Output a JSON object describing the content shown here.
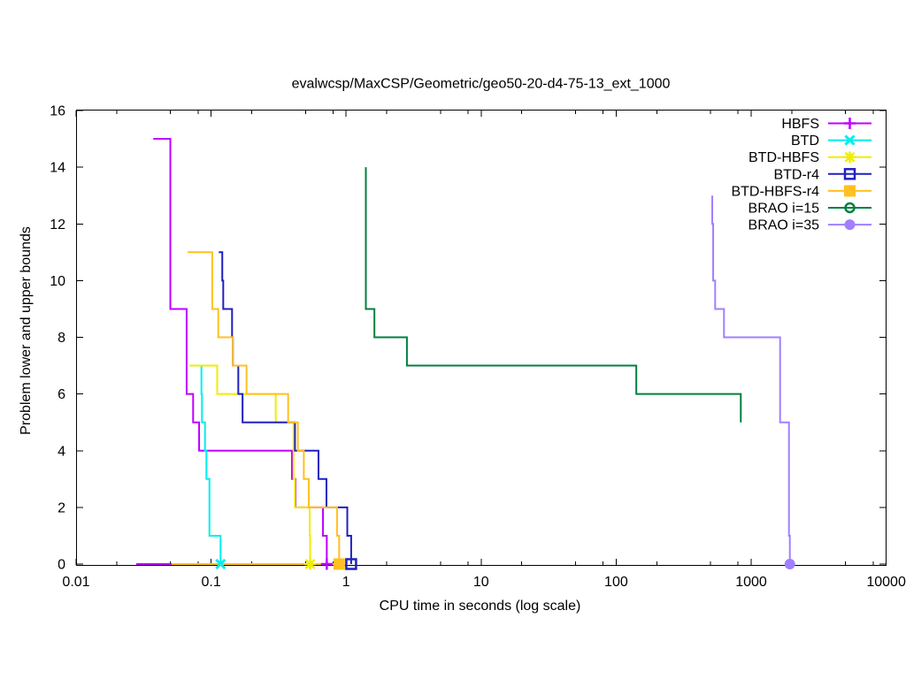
{
  "chart_data": {
    "type": "line",
    "title": "evalwcsp/MaxCSP/Geometric/geo50-20-d4-75-13_ext_1000",
    "xlabel": "CPU time in seconds (log scale)",
    "ylabel": "Problem lower and upper bounds",
    "xscale": "log",
    "xlim": [
      0.01,
      10000
    ],
    "ylim": [
      0,
      16
    ],
    "grid": false,
    "legend_position": "top-right",
    "xticks": [
      {
        "value": 0.01,
        "label": "0.01"
      },
      {
        "value": 0.1,
        "label": "0.1"
      },
      {
        "value": 1,
        "label": "1"
      },
      {
        "value": 10,
        "label": "10"
      },
      {
        "value": 100,
        "label": "100"
      },
      {
        "value": 1000,
        "label": "1000"
      },
      {
        "value": 10000,
        "label": "10000"
      }
    ],
    "xminor_multipliers": [
      2,
      5,
      8
    ],
    "yticks": [
      {
        "value": 0,
        "label": "0"
      },
      {
        "value": 2,
        "label": "2"
      },
      {
        "value": 4,
        "label": "4"
      },
      {
        "value": 6,
        "label": "6"
      },
      {
        "value": 8,
        "label": "8"
      },
      {
        "value": 10,
        "label": "10"
      },
      {
        "value": 12,
        "label": "12"
      },
      {
        "value": 14,
        "label": "14"
      },
      {
        "value": 16,
        "label": "16"
      }
    ],
    "series": [
      {
        "name": "HBFS",
        "color": "#c000ff",
        "marker": "plus",
        "upper_bound_steps": [
          [
            0.0373,
            15
          ],
          [
            0.0499,
            9
          ],
          [
            0.0659,
            6
          ],
          [
            0.0736,
            5
          ],
          [
            0.0815,
            4
          ],
          [
            0.397,
            3
          ],
          [
            0.422,
            2
          ],
          [
            0.674,
            1
          ],
          [
            0.719,
            0
          ]
        ],
        "lower_bound": [
          [
            0.0279,
            0
          ],
          [
            0.719,
            0
          ]
        ],
        "solved_at": 0.719
      },
      {
        "name": "BTD",
        "color": "#00eeee",
        "marker": "cross",
        "upper_bound_steps": [
          [
            0.0848,
            7
          ],
          [
            0.0848,
            6
          ],
          [
            0.0856,
            5
          ],
          [
            0.0901,
            4
          ],
          [
            0.0923,
            3
          ],
          [
            0.0972,
            1
          ],
          [
            0.1175,
            0
          ]
        ],
        "solved_at": 0.1175
      },
      {
        "name": "BTD-HBFS",
        "color": "#eeee00",
        "marker": "asterisk",
        "upper_bound_steps": [
          [
            0.0693,
            7
          ],
          [
            0.111,
            6
          ],
          [
            0.301,
            5
          ],
          [
            0.408,
            3
          ],
          [
            0.418,
            2
          ],
          [
            0.537,
            1
          ],
          [
            0.541,
            0
          ]
        ],
        "solved_at": 0.541
      },
      {
        "name": "BTD-r4",
        "color": "#2020c0",
        "marker": "square-open",
        "upper_bound_steps": [
          [
            0.114,
            11
          ],
          [
            0.121,
            10
          ],
          [
            0.123,
            9
          ],
          [
            0.143,
            8
          ],
          [
            0.145,
            7
          ],
          [
            0.159,
            6
          ],
          [
            0.171,
            5
          ],
          [
            0.418,
            4
          ],
          [
            0.624,
            3
          ],
          [
            0.715,
            2
          ],
          [
            1.02,
            1
          ],
          [
            1.09,
            0
          ]
        ],
        "solved_at": 1.09
      },
      {
        "name": "BTD-HBFS-r4",
        "color": "#ffc020",
        "marker": "square-filled",
        "upper_bound_steps": [
          [
            0.067,
            11
          ],
          [
            0.102,
            9
          ],
          [
            0.113,
            8
          ],
          [
            0.145,
            7
          ],
          [
            0.183,
            6
          ],
          [
            0.372,
            5
          ],
          [
            0.439,
            4
          ],
          [
            0.486,
            3
          ],
          [
            0.529,
            2
          ],
          [
            0.857,
            1
          ],
          [
            0.888,
            0
          ]
        ],
        "lower_bound": [
          [
            0.051,
            0
          ],
          [
            0.888,
            0
          ]
        ],
        "solved_at": 0.888
      },
      {
        "name": "BRAO i=15",
        "color": "#008040",
        "marker": "circle-open",
        "upper_bound_steps": [
          [
            1.4,
            14
          ],
          [
            1.4,
            9
          ],
          [
            1.62,
            8
          ],
          [
            2.82,
            7
          ],
          [
            141,
            6
          ],
          [
            838,
            5
          ]
        ]
      },
      {
        "name": "BRAO i=35",
        "color": "#a080ff",
        "marker": "circle-filled",
        "upper_bound_steps": [
          [
            515,
            13
          ],
          [
            515,
            12
          ],
          [
            523,
            10
          ],
          [
            541,
            9
          ],
          [
            629,
            8
          ],
          [
            1638,
            5
          ],
          [
            1905,
            1
          ],
          [
            1934,
            0
          ]
        ],
        "solved_at": 1934
      }
    ]
  }
}
